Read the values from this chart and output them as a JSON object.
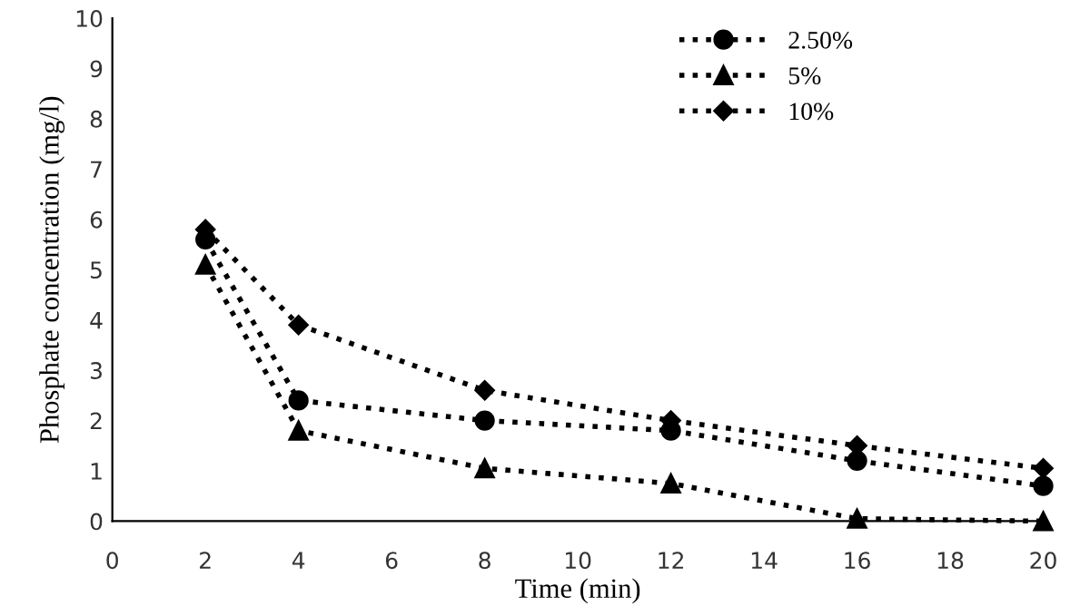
{
  "chart_data": {
    "type": "line",
    "xlabel": "Time (min)",
    "ylabel": "Phosphate concentration (mg/l)",
    "x": [
      2,
      4,
      8,
      12,
      16,
      20
    ],
    "series": [
      {
        "name": "2.50%",
        "color": "#000000",
        "marker": "circle",
        "values": [
          5.6,
          2.4,
          2.0,
          1.8,
          1.2,
          0.7
        ]
      },
      {
        "name": "5%",
        "color": "#000000",
        "marker": "triangle",
        "values": [
          5.1,
          1.8,
          1.05,
          0.75,
          0.05,
          0
        ]
      },
      {
        "name": "10%",
        "color": "#000000",
        "marker": "diamond",
        "values": [
          5.8,
          3.9,
          2.6,
          2.0,
          1.5,
          1.05
        ]
      }
    ],
    "line_style": "dotted",
    "xlim": [
      0,
      20
    ],
    "ylim": [
      0,
      10
    ],
    "xticks": [
      0,
      2,
      4,
      6,
      8,
      10,
      12,
      14,
      16,
      18,
      20
    ],
    "yticks": [
      0,
      1,
      2,
      3,
      4,
      5,
      6,
      7,
      8,
      9,
      10
    ],
    "grid": false,
    "legend": "top right"
  }
}
